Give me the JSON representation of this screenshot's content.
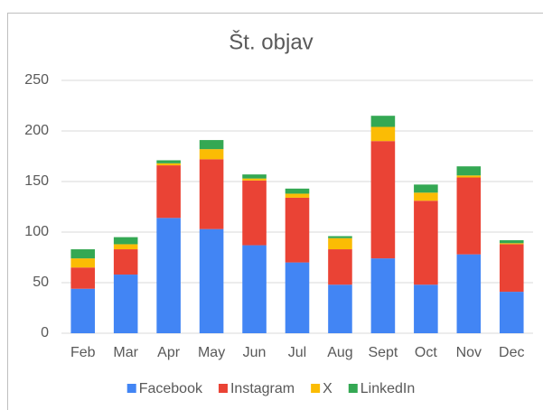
{
  "chart_data": {
    "type": "stacked_bar",
    "title": "Št. objav",
    "categories": [
      "Feb",
      "Mar",
      "Apr",
      "May",
      "Jun",
      "Jul",
      "Aug",
      "Sept",
      "Oct",
      "Nov",
      "Dec"
    ],
    "series": [
      {
        "name": "Facebook",
        "color": "#4285f4",
        "values": [
          44,
          58,
          114,
          103,
          87,
          70,
          48,
          74,
          48,
          78,
          41
        ]
      },
      {
        "name": "Instagram",
        "color": "#ea4335",
        "values": [
          21,
          25,
          52,
          69,
          64,
          64,
          35,
          116,
          83,
          76,
          47
        ]
      },
      {
        "name": "X",
        "color": "#fbbc04",
        "values": [
          9,
          5,
          2,
          10,
          2,
          4,
          11,
          14,
          8,
          2,
          1
        ]
      },
      {
        "name": "LinkedIn",
        "color": "#34a853",
        "values": [
          9,
          7,
          3,
          9,
          4,
          5,
          2,
          11,
          8,
          9,
          3
        ]
      }
    ],
    "ylim": [
      0,
      250
    ],
    "yticks": [
      0,
      50,
      100,
      150,
      200,
      250
    ],
    "grid": true,
    "legend": "bottom"
  }
}
